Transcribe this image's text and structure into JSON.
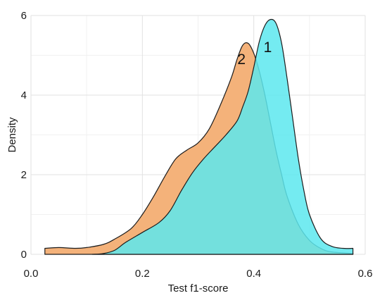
{
  "chart_data": {
    "type": "area",
    "title": "",
    "xlabel": "Test f1-score",
    "ylabel": "Density",
    "xlim": [
      0.0,
      0.6
    ],
    "ylim": [
      0,
      6
    ],
    "x_ticks": [
      0.0,
      0.2,
      0.4,
      0.6
    ],
    "x_tick_labels": [
      "0.0",
      "0.2",
      "0.4",
      "0.6"
    ],
    "y_ticks": [
      0,
      2,
      4,
      6
    ],
    "y_tick_labels": [
      "0",
      "2",
      "4",
      "6"
    ],
    "grid": true,
    "legend": "none",
    "series": [
      {
        "name": "2",
        "color": "#f4b27a",
        "points": [
          [
            0.025,
            0.15
          ],
          [
            0.05,
            0.17
          ],
          [
            0.08,
            0.15
          ],
          [
            0.1,
            0.17
          ],
          [
            0.13,
            0.25
          ],
          [
            0.15,
            0.38
          ],
          [
            0.18,
            0.65
          ],
          [
            0.2,
            1.0
          ],
          [
            0.22,
            1.45
          ],
          [
            0.24,
            1.95
          ],
          [
            0.26,
            2.4
          ],
          [
            0.28,
            2.62
          ],
          [
            0.3,
            2.8
          ],
          [
            0.32,
            3.15
          ],
          [
            0.34,
            3.75
          ],
          [
            0.36,
            4.45
          ],
          [
            0.37,
            4.9
          ],
          [
            0.38,
            5.25
          ],
          [
            0.39,
            5.3
          ],
          [
            0.4,
            5.05
          ],
          [
            0.41,
            4.6
          ],
          [
            0.42,
            4.0
          ],
          [
            0.43,
            3.3
          ],
          [
            0.44,
            2.6
          ],
          [
            0.45,
            2.0
          ],
          [
            0.46,
            1.45
          ],
          [
            0.48,
            0.75
          ],
          [
            0.5,
            0.35
          ],
          [
            0.52,
            0.15
          ],
          [
            0.54,
            0.06
          ],
          [
            0.578,
            0.02
          ]
        ]
      },
      {
        "name": "1",
        "color": "#5ce8ee",
        "points": [
          [
            0.11,
            0.0
          ],
          [
            0.13,
            0.02
          ],
          [
            0.15,
            0.1
          ],
          [
            0.17,
            0.3
          ],
          [
            0.2,
            0.55
          ],
          [
            0.23,
            0.8
          ],
          [
            0.25,
            1.1
          ],
          [
            0.27,
            1.6
          ],
          [
            0.29,
            2.05
          ],
          [
            0.31,
            2.4
          ],
          [
            0.33,
            2.7
          ],
          [
            0.35,
            3.0
          ],
          [
            0.37,
            3.35
          ],
          [
            0.38,
            3.7
          ],
          [
            0.39,
            4.1
          ],
          [
            0.4,
            4.7
          ],
          [
            0.41,
            5.35
          ],
          [
            0.42,
            5.75
          ],
          [
            0.43,
            5.9
          ],
          [
            0.44,
            5.8
          ],
          [
            0.45,
            5.3
          ],
          [
            0.46,
            4.4
          ],
          [
            0.47,
            3.4
          ],
          [
            0.48,
            2.4
          ],
          [
            0.49,
            1.6
          ],
          [
            0.5,
            1.0
          ],
          [
            0.52,
            0.4
          ],
          [
            0.54,
            0.2
          ],
          [
            0.56,
            0.15
          ],
          [
            0.578,
            0.15
          ]
        ]
      }
    ],
    "annotations": [
      {
        "text": "2",
        "x": 0.378,
        "y": 4.9
      },
      {
        "text": "1",
        "x": 0.425,
        "y": 5.2
      }
    ]
  }
}
